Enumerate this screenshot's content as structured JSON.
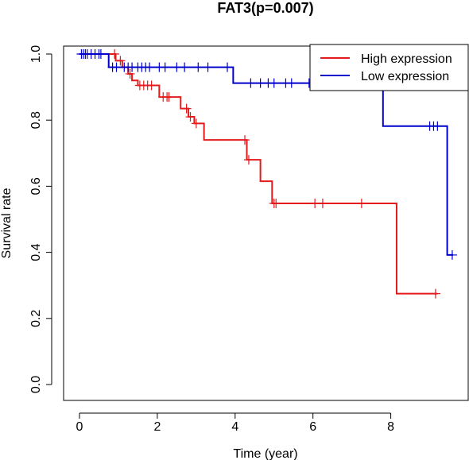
{
  "chart_data": {
    "type": "line",
    "subtype": "kaplan-meier-survival",
    "title": "FAT3(p=0.007)",
    "xlabel": "Time (year)",
    "ylabel": "Survival rate",
    "xlim": [
      0,
      9.6
    ],
    "ylim": [
      0,
      1.0
    ],
    "x_ticks": [
      "0",
      "2",
      "4",
      "6",
      "8"
    ],
    "y_ticks": [
      "0.0",
      "0.2",
      "0.4",
      "0.6",
      "0.8",
      "1.0"
    ],
    "grid": false,
    "legend_position": "top-right",
    "series": [
      {
        "name": "High expression",
        "color": "#e41a1c",
        "step_x": [
          0,
          0.93,
          1.1,
          1.25,
          1.35,
          1.5,
          2.05,
          2.6,
          2.8,
          2.95,
          3.2,
          4.3,
          4.65,
          4.95,
          8.15,
          9.2
        ],
        "step_y": [
          1.0,
          0.98,
          0.96,
          0.94,
          0.92,
          0.905,
          0.87,
          0.835,
          0.81,
          0.79,
          0.74,
          0.68,
          0.615,
          0.548,
          0.275,
          0.275
        ],
        "censor_x": [
          0.9,
          1.05,
          1.3,
          1.55,
          1.65,
          1.75,
          1.85,
          2.15,
          2.25,
          2.3,
          2.75,
          2.85,
          3.0,
          4.25,
          4.35,
          5.0,
          5.05,
          6.05,
          6.25,
          7.25,
          9.15
        ],
        "censor_y": [
          1.0,
          0.98,
          0.94,
          0.905,
          0.905,
          0.905,
          0.905,
          0.87,
          0.87,
          0.87,
          0.835,
          0.81,
          0.79,
          0.74,
          0.68,
          0.548,
          0.548,
          0.548,
          0.548,
          0.548,
          0.275
        ]
      },
      {
        "name": "Low expression",
        "color": "#0000cc",
        "step_x": [
          0,
          0.75,
          1.15,
          3.95,
          7.8,
          9.45,
          9.6
        ],
        "step_y": [
          1.0,
          0.96,
          0.96,
          0.912,
          0.782,
          0.392,
          0.392
        ],
        "censor_x": [
          0.05,
          0.1,
          0.15,
          0.2,
          0.3,
          0.4,
          0.5,
          0.55,
          0.85,
          0.95,
          1.15,
          1.25,
          1.35,
          1.5,
          1.6,
          1.7,
          1.8,
          2.05,
          2.2,
          2.5,
          2.7,
          3.05,
          3.3,
          3.8,
          4.4,
          4.65,
          4.85,
          5.0,
          5.3,
          5.45,
          5.9,
          6.05,
          6.4,
          6.75,
          7.1,
          7.5,
          9.0,
          9.1,
          9.2,
          9.58
        ],
        "censor_y": [
          1.0,
          1.0,
          1.0,
          1.0,
          1.0,
          1.0,
          1.0,
          1.0,
          0.96,
          0.96,
          0.96,
          0.96,
          0.96,
          0.96,
          0.96,
          0.96,
          0.96,
          0.96,
          0.96,
          0.96,
          0.96,
          0.96,
          0.96,
          0.96,
          0.912,
          0.912,
          0.912,
          0.912,
          0.912,
          0.912,
          0.912,
          0.912,
          0.912,
          0.912,
          0.912,
          0.912,
          0.782,
          0.782,
          0.782,
          0.392
        ]
      }
    ]
  }
}
